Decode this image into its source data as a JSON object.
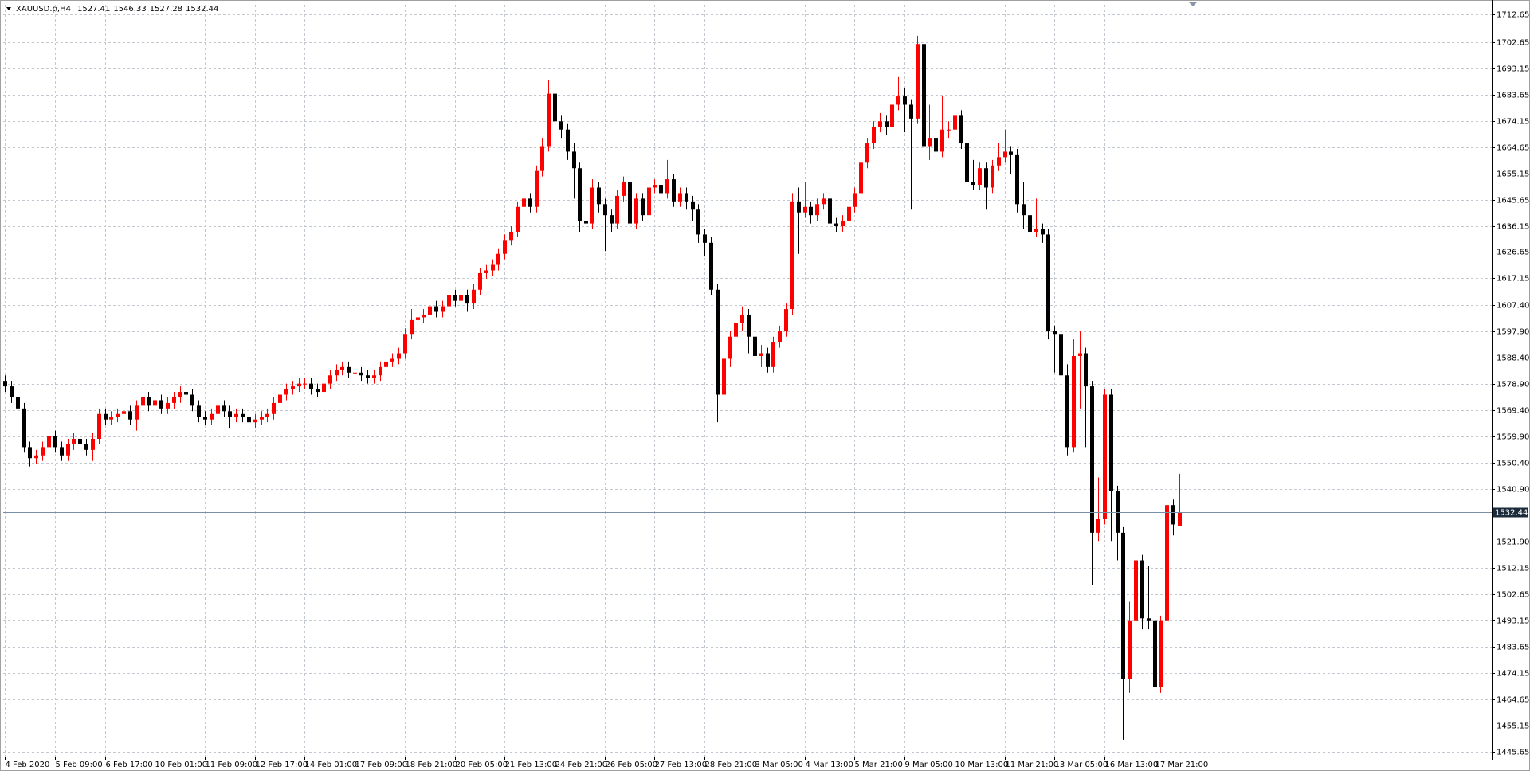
{
  "chart_data": {
    "type": "candlestick",
    "title": "XAUUSD.p,H4",
    "up_color": "#ff0000",
    "down_color": "#000000",
    "grid": true,
    "grid_color": "#c3c8d0",
    "ylim": [
      1443.9,
      1716.2
    ],
    "yticks": [
      1712.65,
      1702.65,
      1693.15,
      1683.65,
      1674.15,
      1664.65,
      1655.15,
      1645.65,
      1636.15,
      1626.65,
      1617.15,
      {
        "value": 1607.4,
        "label": "1607.40"
      },
      {
        "value": 1597.9,
        "label": "1597.90"
      },
      {
        "value": 1588.4,
        "label": "1588.40"
      },
      {
        "value": 1578.9,
        "label": "1578.90"
      },
      {
        "value": 1569.4,
        "label": "1569.40"
      },
      {
        "value": 1559.9,
        "label": "1559.90"
      },
      {
        "value": 1550.4,
        "label": "1550.40"
      },
      {
        "value": 1540.9,
        "label": "1540.90"
      },
      {
        "value": 1521.9,
        "label": "1521.90"
      },
      1512.15,
      1502.65,
      1493.15,
      1483.65,
      1474.15,
      1464.65,
      1455.15,
      1445.65
    ],
    "categories": [
      "4 Feb 2020",
      null,
      null,
      null,
      null,
      null,
      null,
      null,
      "5 Feb 09:00",
      null,
      null,
      null,
      null,
      null,
      null,
      null,
      "6 Feb 17:00",
      null,
      null,
      null,
      null,
      null,
      null,
      null,
      "10 Feb 01:00",
      null,
      null,
      null,
      null,
      null,
      null,
      null,
      "11 Feb 09:00",
      null,
      null,
      null,
      null,
      null,
      null,
      null,
      "12 Feb 17:00",
      null,
      null,
      null,
      null,
      null,
      null,
      null,
      "14 Feb 01:00",
      null,
      null,
      null,
      null,
      null,
      null,
      null,
      "17 Feb 09:00",
      null,
      null,
      null,
      null,
      null,
      null,
      null,
      "18 Feb 21:00",
      null,
      null,
      null,
      null,
      null,
      null,
      null,
      "20 Feb 05:00",
      null,
      null,
      null,
      null,
      null,
      null,
      null,
      "21 Feb 13:00",
      null,
      null,
      null,
      null,
      null,
      null,
      null,
      "24 Feb 21:00",
      null,
      null,
      null,
      null,
      null,
      null,
      null,
      "26 Feb 05:00",
      null,
      null,
      null,
      null,
      null,
      null,
      null,
      "27 Feb 13:00",
      null,
      null,
      null,
      null,
      null,
      null,
      null,
      "28 Feb 21:00",
      null,
      null,
      null,
      null,
      null,
      null,
      null,
      "3 Mar 05:00",
      null,
      null,
      null,
      null,
      null,
      null,
      null,
      "4 Mar 13:00",
      null,
      null,
      null,
      null,
      null,
      null,
      null,
      "5 Mar 21:00",
      null,
      null,
      null,
      null,
      null,
      null,
      null,
      "9 Mar 05:00",
      null,
      null,
      null,
      null,
      null,
      null,
      null,
      "10 Mar 13:00",
      null,
      null,
      null,
      null,
      null,
      null,
      null,
      "11 Mar 21:00",
      null,
      null,
      null,
      null,
      null,
      null,
      null,
      "13 Mar 05:00",
      null,
      null,
      null,
      null,
      null,
      null,
      null,
      "16 Mar 13:00",
      null,
      null,
      null,
      null,
      null,
      null,
      null,
      "17 Mar 21:00",
      null,
      null,
      null,
      null
    ],
    "open": [
      1580,
      1578,
      1574,
      1570,
      1556,
      1552,
      1553,
      1556,
      1560,
      1556,
      1553,
      1557,
      1559,
      1557,
      1555,
      1559,
      1568,
      1566,
      1567,
      1568,
      1569,
      1566,
      1571,
      1574,
      1571,
      1573,
      1570,
      1572,
      1574,
      1576,
      1575,
      1571,
      1567,
      1566,
      1568,
      1571,
      1569,
      1567,
      1568,
      1567,
      1565,
      1566,
      1567,
      1568,
      1572,
      1575,
      1577,
      1578,
      1579,
      1579,
      1577,
      1576,
      1579,
      1582,
      1584,
      1585,
      1583,
      1583,
      1582,
      1581,
      1582,
      1585,
      1587,
      1588,
      1590,
      1597,
      1602,
      1603,
      1604,
      1607,
      1605,
      1607,
      1611,
      1609,
      1611,
      1608,
      1613,
      1619,
      1620,
      1622,
      1626,
      1631,
      1634,
      1643,
      1646,
      1643,
      1656,
      1665,
      1684,
      1674,
      1671,
      1663,
      1657,
      1638,
      1637,
      1650,
      1644,
      1640,
      1637,
      1647,
      1652,
      1637,
      1646,
      1640,
      1650,
      1651,
      1648,
      1653,
      1645,
      1648,
      1645,
      1642,
      1633,
      1630,
      1613,
      1575,
      1588,
      1596,
      1601,
      1604,
      1596,
      1589,
      1590,
      1585,
      1594,
      1598,
      1606,
      1645,
      1641,
      1643,
      1640,
      1644,
      1646,
      1637,
      1636,
      1638,
      1643,
      1648,
      1659,
      1666,
      1672,
      1674,
      1672,
      1680,
      1683,
      1680,
      1675,
      1702,
      1665,
      1668,
      1663,
      1671,
      1671,
      1676,
      1666,
      1652,
      1651,
      1657,
      1650,
      1658,
      1661,
      1663,
      1662,
      1644,
      1640,
      1634,
      1635,
      1633,
      1598,
      1597,
      1582,
      1556,
      1589,
      1590,
      1578,
      1525,
      1530,
      1575,
      1540,
      1525,
      1472,
      1493,
      1515,
      1494,
      1493,
      1469,
      1493,
      1535,
      1527.41
    ],
    "high": [
      1582,
      1580,
      1576,
      1572,
      1558,
      1555,
      1558,
      1562,
      1562,
      1558,
      1559,
      1561,
      1561,
      1559,
      1561,
      1570,
      1570,
      1569,
      1570,
      1571,
      1571,
      1573,
      1576,
      1576,
      1575,
      1575,
      1574,
      1576,
      1578,
      1578,
      1577,
      1573,
      1569,
      1570,
      1573,
      1573,
      1571,
      1570,
      1570,
      1569,
      1568,
      1569,
      1570,
      1574,
      1577,
      1579,
      1580,
      1581,
      1581,
      1581,
      1579,
      1581,
      1584,
      1586,
      1587,
      1587,
      1585,
      1585,
      1584,
      1584,
      1587,
      1589,
      1590,
      1592,
      1599,
      1606,
      1605,
      1606,
      1609,
      1609,
      1609,
      1613,
      1613,
      1613,
      1613,
      1615,
      1621,
      1622,
      1624,
      1628,
      1633,
      1636,
      1645,
      1648,
      1648,
      1658,
      1668,
      1689,
      1687,
      1676,
      1673,
      1666,
      1659,
      1641,
      1653,
      1652,
      1646,
      1642,
      1649,
      1654,
      1654,
      1648,
      1648,
      1652,
      1653,
      1653,
      1660,
      1655,
      1650,
      1650,
      1647,
      1644,
      1635,
      1632,
      1615,
      1592,
      1598,
      1604,
      1607,
      1606,
      1599,
      1593,
      1592,
      1596,
      1600,
      1608,
      1648,
      1650,
      1652,
      1645,
      1646,
      1648,
      1648,
      1639,
      1640,
      1645,
      1650,
      1661,
      1668,
      1674,
      1677,
      1676,
      1683,
      1690,
      1686,
      1682,
      1705,
      1704,
      1680,
      1685,
      1683,
      1674,
      1679,
      1678,
      1668,
      1660,
      1659,
      1659,
      1660,
      1666,
      1671,
      1665,
      1664,
      1652,
      1645,
      1646,
      1637,
      1635,
      1600,
      1599,
      1586,
      1595,
      1598,
      1592,
      1580,
      1545,
      1577,
      1577,
      1542,
      1527,
      1500,
      1518,
      1517,
      1513,
      1495,
      1495,
      1555,
      1537,
      1546.33
    ],
    "low": [
      1576,
      1572,
      1568,
      1554,
      1549,
      1550,
      1551,
      1548,
      1554,
      1551,
      1551,
      1555,
      1555,
      1553,
      1551,
      1557,
      1564,
      1564,
      1565,
      1566,
      1564,
      1562,
      1569,
      1569,
      1569,
      1568,
      1568,
      1570,
      1572,
      1573,
      1569,
      1565,
      1564,
      1564,
      1566,
      1567,
      1563,
      1565,
      1565,
      1563,
      1563,
      1564,
      1565,
      1566,
      1570,
      1573,
      1575,
      1576,
      1577,
      1575,
      1574,
      1574,
      1577,
      1580,
      1582,
      1581,
      1581,
      1580,
      1579,
      1579,
      1580,
      1583,
      1585,
      1586,
      1588,
      1595,
      1600,
      1601,
      1602,
      1603,
      1603,
      1605,
      1607,
      1607,
      1605,
      1606,
      1611,
      1617,
      1618,
      1620,
      1624,
      1629,
      1632,
      1641,
      1641,
      1641,
      1654,
      1663,
      1665,
      1668,
      1660,
      1646,
      1634,
      1633,
      1635,
      1641,
      1627,
      1634,
      1635,
      1645,
      1627,
      1635,
      1638,
      1638,
      1648,
      1646,
      1646,
      1643,
      1643,
      1642,
      1638,
      1630,
      1625,
      1611,
      1565,
      1568,
      1585,
      1594,
      1598,
      1590,
      1586,
      1585,
      1583,
      1583,
      1592,
      1596,
      1604,
      1626,
      1639,
      1637,
      1638,
      1642,
      1635,
      1634,
      1634,
      1636,
      1641,
      1646,
      1657,
      1664,
      1670,
      1669,
      1670,
      1678,
      1670,
      1642,
      1673,
      1663,
      1660,
      1660,
      1661,
      1668,
      1669,
      1664,
      1650,
      1649,
      1649,
      1642,
      1648,
      1656,
      1659,
      1655,
      1641,
      1635,
      1632,
      1632,
      1630,
      1595,
      1583,
      1563,
      1553,
      1554,
      1570,
      1556,
      1506,
      1522,
      1528,
      1522,
      1515,
      1450,
      1467,
      1488,
      1490,
      1490,
      1467,
      1467,
      1491,
      1524,
      1527.28
    ],
    "close": [
      1578,
      1574,
      1570,
      1556,
      1552,
      1553,
      1556,
      1560,
      1556,
      1553,
      1557,
      1559,
      1557,
      1555,
      1559,
      1568,
      1566,
      1567,
      1568,
      1569,
      1566,
      1571,
      1574,
      1571,
      1573,
      1570,
      1572,
      1574,
      1576,
      1575,
      1571,
      1567,
      1566,
      1568,
      1571,
      1569,
      1567,
      1568,
      1567,
      1565,
      1566,
      1567,
      1568,
      1572,
      1575,
      1577,
      1578,
      1579,
      1579,
      1577,
      1576,
      1579,
      1582,
      1584,
      1585,
      1583,
      1583,
      1582,
      1581,
      1582,
      1585,
      1587,
      1588,
      1590,
      1597,
      1602,
      1603,
      1604,
      1607,
      1605,
      1607,
      1611,
      1609,
      1611,
      1608,
      1613,
      1619,
      1620,
      1622,
      1626,
      1631,
      1634,
      1643,
      1646,
      1643,
      1656,
      1665,
      1684,
      1674,
      1671,
      1663,
      1657,
      1638,
      1637,
      1650,
      1644,
      1640,
      1637,
      1647,
      1652,
      1637,
      1646,
      1640,
      1650,
      1651,
      1648,
      1653,
      1645,
      1648,
      1645,
      1642,
      1633,
      1630,
      1613,
      1575,
      1588,
      1596,
      1601,
      1604,
      1596,
      1589,
      1590,
      1585,
      1594,
      1598,
      1606,
      1645,
      1641,
      1643,
      1640,
      1644,
      1646,
      1637,
      1636,
      1638,
      1643,
      1648,
      1659,
      1666,
      1672,
      1674,
      1672,
      1680,
      1683,
      1680,
      1675,
      1702,
      1665,
      1668,
      1663,
      1671,
      1671,
      1676,
      1666,
      1652,
      1651,
      1657,
      1650,
      1658,
      1661,
      1663,
      1662,
      1644,
      1640,
      1634,
      1635,
      1633,
      1598,
      1597,
      1582,
      1556,
      1589,
      1590,
      1578,
      1525,
      1530,
      1575,
      1540,
      1525,
      1472,
      1493,
      1515,
      1494,
      1493,
      1469,
      1493,
      1535,
      1528,
      1532.44
    ]
  }
}
